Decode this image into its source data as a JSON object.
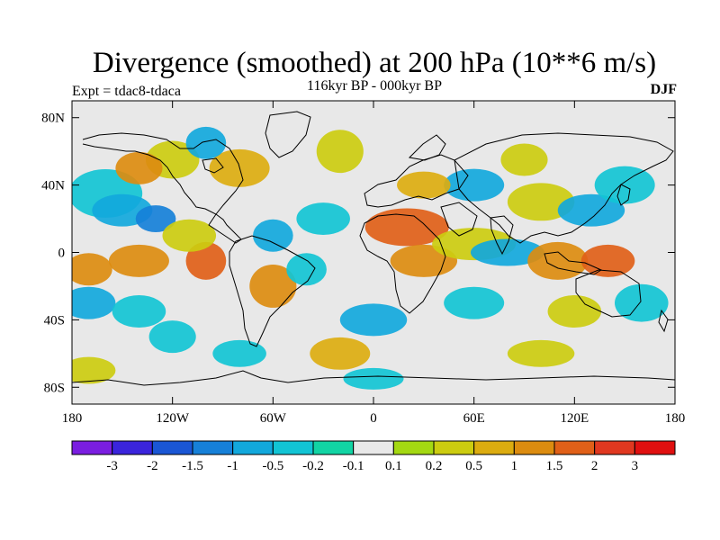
{
  "title": "Divergence (smoothed) at 200 hPa (10**6 m/s)",
  "subtitle": "116kyr BP - 000kyr BP",
  "experiment": "Expt = tdac8-tdaca",
  "season": "DJF",
  "axes": {
    "longitude_labels": [
      "180",
      "120W",
      "60W",
      "0",
      "60E",
      "120E",
      "180"
    ],
    "longitude_values": [
      -180,
      -120,
      -60,
      0,
      60,
      120,
      180
    ],
    "latitude_labels": [
      "80N",
      "40N",
      "0",
      "40S",
      "80S"
    ],
    "latitude_values": [
      80,
      40,
      0,
      -40,
      -80
    ],
    "lon_range": [
      -180,
      180
    ],
    "lat_range": [
      -90,
      90
    ]
  },
  "colorbar": {
    "labels": [
      "-3",
      "-2",
      "-1.5",
      "-1",
      "-0.5",
      "-0.2",
      "-0.1",
      "0.1",
      "0.2",
      "0.5",
      "1",
      "1.5",
      "2",
      "3"
    ],
    "colors": [
      "#7a1ee0",
      "#3a24dc",
      "#1a56d4",
      "#1680d8",
      "#12a8dc",
      "#12c4d4",
      "#12d4a4",
      "#e8e8e8",
      "#a4d812",
      "#cccc10",
      "#dcac10",
      "#dc8c10",
      "#e06018",
      "#e03820",
      "#e01010"
    ]
  },
  "colors": {
    "background_field": "#e8e8e8",
    "coastline": "#000000"
  }
}
